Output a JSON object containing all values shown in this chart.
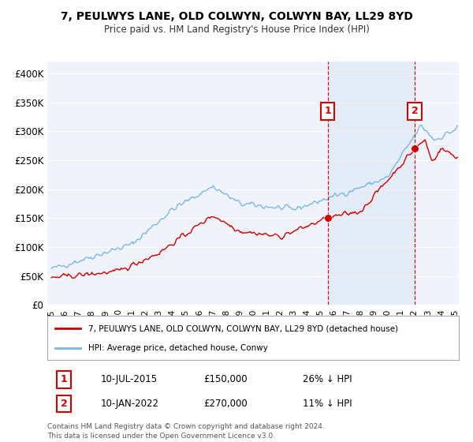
{
  "title": "7, PEULWYS LANE, OLD COLWYN, COLWYN BAY, LL29 8YD",
  "subtitle": "Price paid vs. HM Land Registry's House Price Index (HPI)",
  "ylim": [
    0,
    420000
  ],
  "yticks": [
    0,
    50000,
    100000,
    150000,
    200000,
    250000,
    300000,
    350000,
    400000
  ],
  "ytick_labels": [
    "£0",
    "£50K",
    "£100K",
    "£150K",
    "£200K",
    "£250K",
    "£300K",
    "£350K",
    "£400K"
  ],
  "sale1_date": 2015.55,
  "sale1_price": 150000,
  "sale2_date": 2022.03,
  "sale2_price": 270000,
  "hpi_color": "#7ab8e8",
  "house_color": "#cc0000",
  "vline_color": "#cc0000",
  "shade_color": "#dce8f5",
  "background_color": "#f0f4fa",
  "grid_color": "#ffffff",
  "legend_house": "7, PEULWYS LANE, OLD COLWYN, COLWYN BAY, LL29 8YD (detached house)",
  "legend_hpi": "HPI: Average price, detached house, Conwy",
  "annotation1_label": "1",
  "annotation1_date": "10-JUL-2015",
  "annotation1_price": "£150,000",
  "annotation1_hpi": "26% ↓ HPI",
  "annotation2_label": "2",
  "annotation2_date": "10-JAN-2022",
  "annotation2_price": "£270,000",
  "annotation2_hpi": "11% ↓ HPI",
  "footnote1": "Contains HM Land Registry data © Crown copyright and database right 2024.",
  "footnote2": "This data is licensed under the Open Government Licence v3.0."
}
